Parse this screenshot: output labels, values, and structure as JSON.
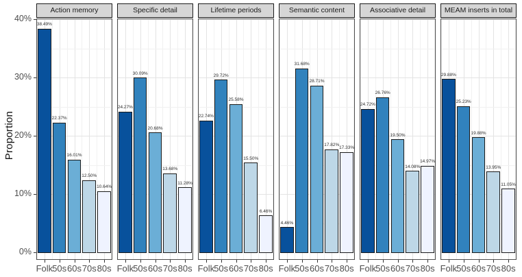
{
  "chart_data": {
    "type": "bar",
    "title": "",
    "xlabel": "",
    "ylabel": "Proportion",
    "categories": [
      "Folk",
      "50s",
      "60s",
      "70s",
      "80s"
    ],
    "y_ticks": [
      {
        "value": 0,
        "label": "0%"
      },
      {
        "value": 10,
        "label": "10%"
      },
      {
        "value": 20,
        "label": "20%"
      },
      {
        "value": 30,
        "label": "30%"
      },
      {
        "value": 40,
        "label": "40%"
      }
    ],
    "y_minor_ticks": [
      5,
      15,
      25,
      35
    ],
    "ylim": [
      0,
      41
    ],
    "grid": true,
    "legend": false,
    "bar_colors": [
      "#08519C",
      "#3182BD",
      "#6BAED6",
      "#BDD7E7",
      "#EFF3FF"
    ],
    "facets": [
      {
        "label": "Action memory",
        "values": [
          38.49,
          22.37,
          16.01,
          12.5,
          10.64
        ],
        "value_labels": [
          "38.49%",
          "22.37%",
          "16.01%",
          "12.50%",
          "10.64%"
        ]
      },
      {
        "label": "Specific detail",
        "values": [
          24.27,
          30.09,
          20.68,
          13.68,
          11.28
        ],
        "value_labels": [
          "24.27%",
          "30.09%",
          "20.68%",
          "13.68%",
          "11.28%"
        ]
      },
      {
        "label": "Lifetime periods",
        "values": [
          22.74,
          29.72,
          25.58,
          15.5,
          6.46
        ],
        "value_labels": [
          "22.74%",
          "29.72%",
          "25.58%",
          "15.50%",
          "6.46%"
        ]
      },
      {
        "label": "Semantic content",
        "values": [
          4.46,
          31.68,
          28.71,
          17.82,
          17.33
        ],
        "value_labels": [
          "4.46%",
          "31.68%",
          "28.71%",
          "17.82%",
          "17.33%"
        ]
      },
      {
        "label": "Associative detail",
        "values": [
          24.72,
          26.76,
          19.5,
          14.08,
          14.97
        ],
        "value_labels": [
          "24.72%",
          "26.76%",
          "19.50%",
          "14.08%",
          "14.97%"
        ]
      },
      {
        "label": "MEAM inserts in total",
        "values": [
          29.88,
          25.23,
          19.88,
          13.95,
          11.05
        ],
        "value_labels": [
          "29.88%",
          "25.23%",
          "19.88%",
          "13.95%",
          "11.05%"
        ]
      }
    ]
  },
  "colors": {
    "strip_background": "#D6D6D6",
    "strip_border": "#1A1A1A",
    "panel_border": "#4D4D4D",
    "bar_stroke": "#1A1A1A",
    "grid_major": "#E3E3E3",
    "grid_minor": "#F1F1F1",
    "axis_text": "#4D4D4D",
    "background": "#FFFFFF"
  }
}
